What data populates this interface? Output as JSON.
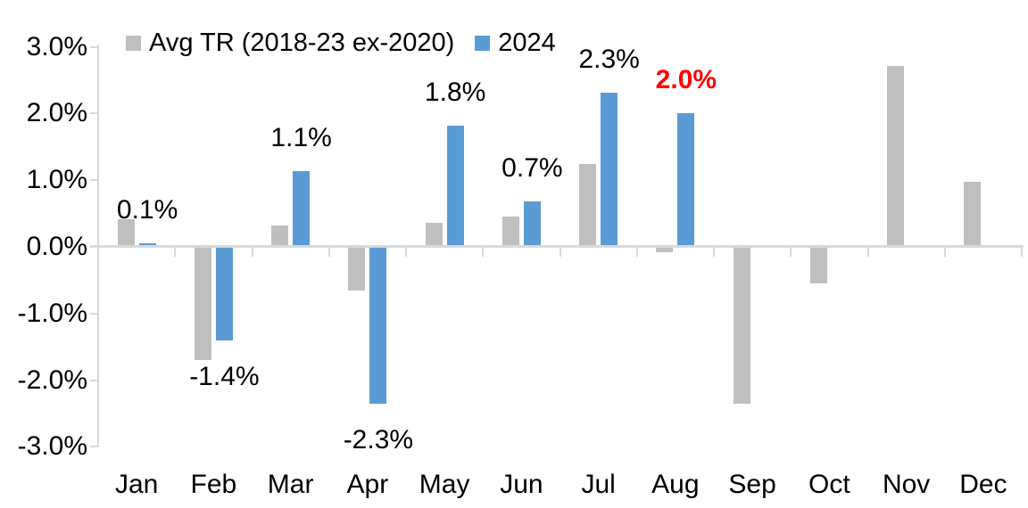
{
  "chart_data": {
    "type": "bar",
    "categories": [
      "Jan",
      "Feb",
      "Mar",
      "Apr",
      "May",
      "Jun",
      "Jul",
      "Aug",
      "Sep",
      "Oct",
      "Nov",
      "Dec"
    ],
    "series": [
      {
        "name": "Avg TR (2018-23 ex-2020)",
        "color": "#BFBFBF",
        "values": [
          0.42,
          -1.7,
          0.32,
          -0.65,
          0.36,
          0.45,
          1.25,
          -0.08,
          -2.35,
          -0.55,
          2.72,
          0.97
        ]
      },
      {
        "name": "2024",
        "color": "#5B9BD5",
        "values": [
          0.06,
          -1.4,
          1.13,
          -2.35,
          1.82,
          0.68,
          2.31,
          2.0,
          null,
          null,
          null,
          null
        ]
      }
    ],
    "data_labels": [
      {
        "index": 0,
        "text": "0.1%",
        "color": "#000000",
        "bold": false
      },
      {
        "index": 1,
        "text": "-1.4%",
        "color": "#000000",
        "bold": false
      },
      {
        "index": 2,
        "text": "1.1%",
        "color": "#000000",
        "bold": false
      },
      {
        "index": 3,
        "text": "-2.3%",
        "color": "#000000",
        "bold": false
      },
      {
        "index": 4,
        "text": "1.8%",
        "color": "#000000",
        "bold": false
      },
      {
        "index": 5,
        "text": "0.7%",
        "color": "#000000",
        "bold": false
      },
      {
        "index": 6,
        "text": "2.3%",
        "color": "#000000",
        "bold": false
      },
      {
        "index": 7,
        "text": "2.0%",
        "color": "#FF0000",
        "bold": true
      }
    ],
    "y_ticks": [
      "3.0%",
      "2.0%",
      "1.0%",
      "0.0%",
      "-1.0%",
      "-2.0%",
      "-3.0%"
    ],
    "ylim": [
      -3,
      3
    ],
    "grid": false,
    "legend_position": "top",
    "axis_color": "#D9D9D9",
    "text_color": "#000000",
    "highlight_color": "#FF0000",
    "title": "",
    "xlabel": "",
    "ylabel": ""
  }
}
